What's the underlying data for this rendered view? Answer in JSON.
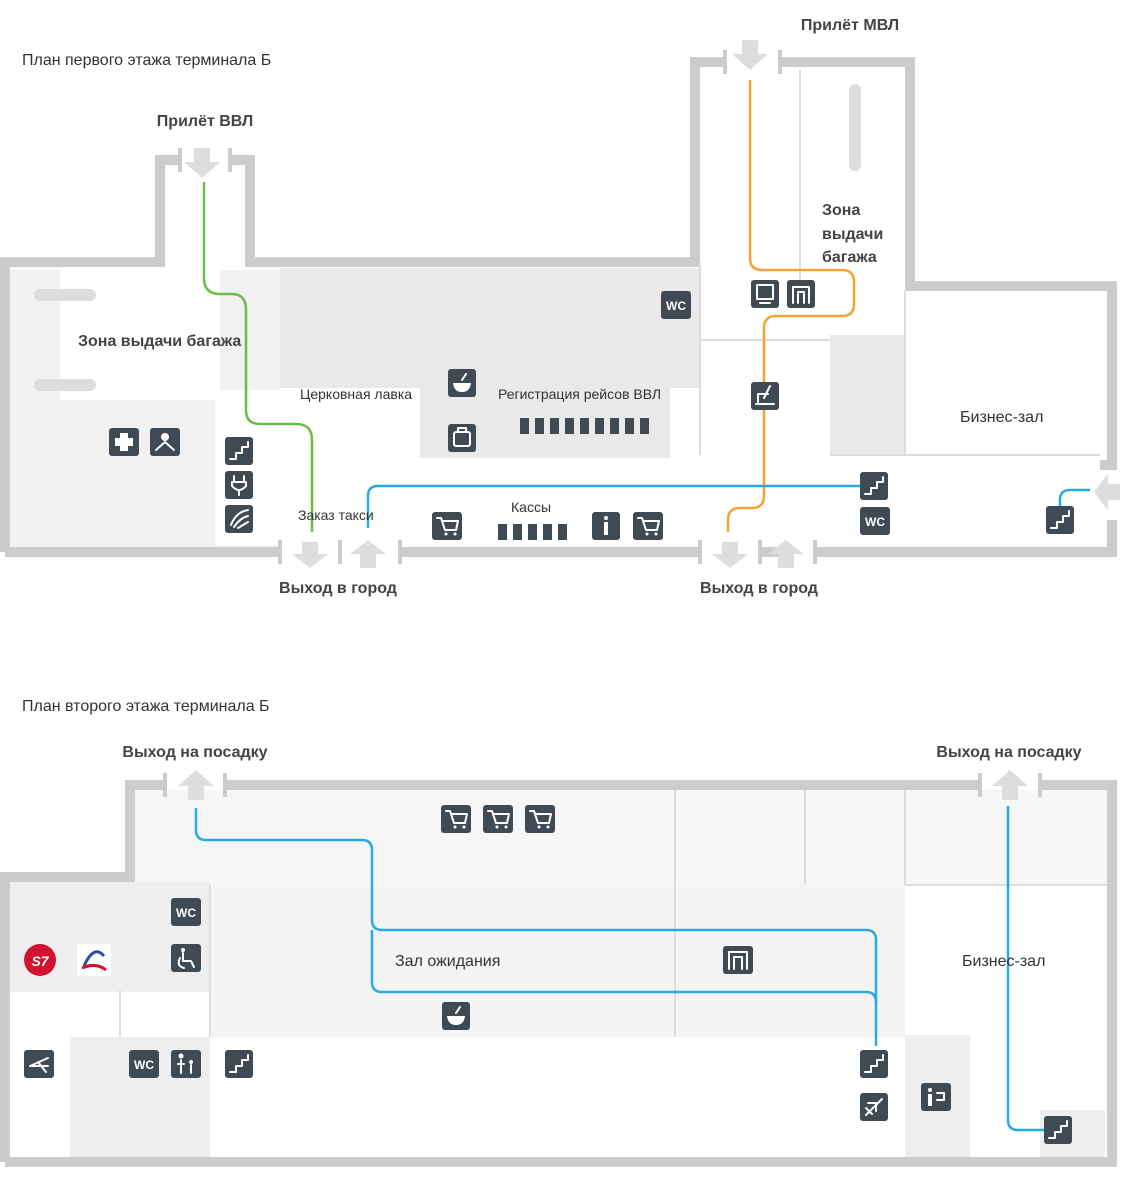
{
  "floor1": {
    "title": "План первого этажа терминала Б",
    "arrivals_domestic": "Прилёт ВВЛ",
    "arrivals_international": "Прилёт МВЛ",
    "baggage_left": "Зона выдачи багажа",
    "baggage_right": "Зона выдачи багажа",
    "church_shop": "Церковная лавка",
    "checkin": "Регистрация рейсов ВВЛ",
    "business_lounge": "Бизнес-зал",
    "taxi": "Заказ такси",
    "ticket_office": "Кассы",
    "exit_left": "Выход в город",
    "exit_right": "Выход в город",
    "wc": "WC"
  },
  "floor2": {
    "title": "План второго этажа терминала Б",
    "boarding_left": "Выход на посадку",
    "boarding_right": "Выход на посадку",
    "waiting_hall": "Зал ожидания",
    "business_lounge": "Бизнес-зал",
    "wc": "WC",
    "s7_logo": "S7"
  },
  "icons": [
    "first-aid-icon",
    "lost-found-icon",
    "stairs-icon",
    "power-socket-icon",
    "payment-icon",
    "cafe-icon",
    "luggage-icon",
    "cart-icon",
    "info-icon",
    "wc-icon",
    "atm-icon",
    "elevator-icon",
    "baggage-wrap-icon",
    "disabled-access-icon",
    "mother-child-icon",
    "airline-logo-icon"
  ],
  "colors": {
    "route_green": "#6abd45",
    "route_orange": "#f5a235",
    "route_blue": "#29abe2",
    "wall": "#cccccc",
    "zone": "#eeeeee",
    "icon": "#3f4a55"
  }
}
